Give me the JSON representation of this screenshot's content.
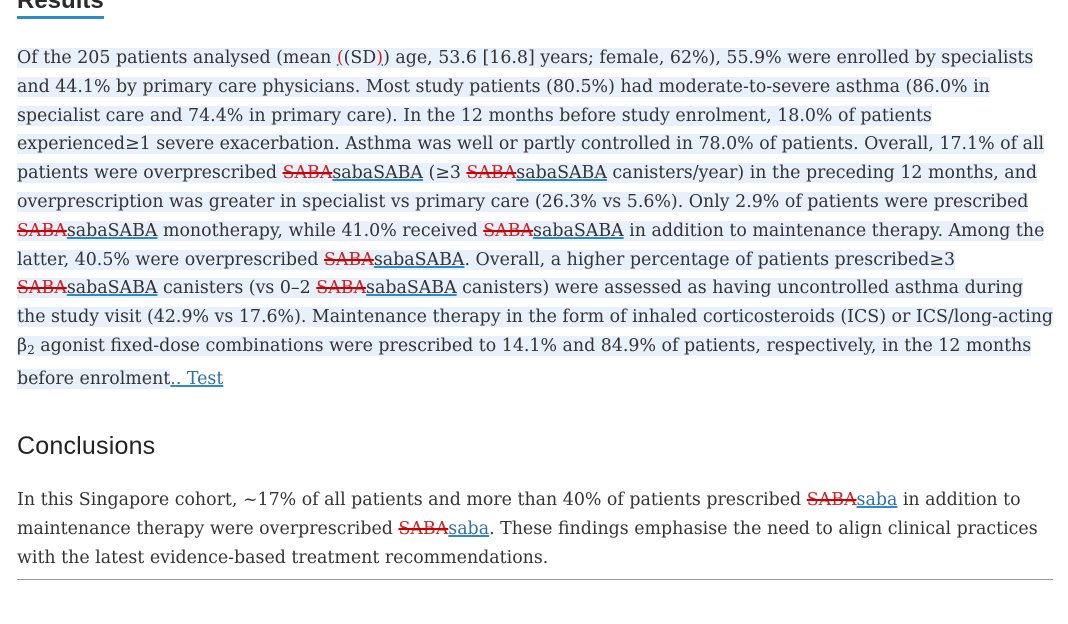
{
  "results": {
    "heading": "Results",
    "t1": "Of the 205 patients analysed (mean ",
    "mark_open": "(",
    "t2": "(SD",
    "mark_close": ")",
    "t3": ") age, 53.6 [16.8] years; female, 62%), 55.9% were enrolled by specialists and 44.1% by primary care physicians. Most study patients (80.5%) had moderate-to-severe asthma (86.0% in specialist care and 74.4% in primary care). In the 12 months before study enrolment, 18.0% of patients experienced≥1 severe exacerbation. Asthma was well or partly controlled in 78.0% of patients. Overall, 17.1% of all patients were overprescribed ",
    "saba_del": "SABA",
    "saba_ins": "saba",
    "saba_final": "SABA",
    "t4": " (≥3 ",
    "t5": " canisters/year) in the preceding 12 months, and overprescription was greater in specialist vs primary care (26.3% vs 5.6%). Only 2.9% of patients were prescribed ",
    "t6": " monotherapy, while 41.0% received ",
    "t7": " in addition to maintenance therapy. Among the latter, 40.5% were overprescribed ",
    "t8": ". Overall, a higher percentage of patients prescribed≥3 ",
    "t9": " canisters (vs 0–2 ",
    "t10": " canisters) were assessed as having uncontrolled asthma during the study visit (42.9% vs 17.6%). Maintenance therapy in the form of inhaled corticosteroids (ICS) or ICS/long-acting β",
    "sub2": "2",
    "t11": " agonist fixed-dose combinations were prescribed to 14.1% and 84.9% of patients, respectively, in the 12 months before enrolment",
    "ins_dot": ".",
    "ins_test": ". Test"
  },
  "conclusions": {
    "heading": "Conclusions",
    "c1": "In this Singapore cohort, ~17% of all patients and more than 40% of patients prescribed ",
    "del": "SABA",
    "ins": "saba",
    "c2": " in addition to maintenance therapy were overprescribed ",
    "c3": ". These findings emphasise the need to align clinical practices with the latest evidence-based treatment recommendations."
  },
  "colors": {
    "deletion": "#cc0000",
    "insertion_underline": "#2e8bc9",
    "selection_background": "#e8f0fc"
  }
}
